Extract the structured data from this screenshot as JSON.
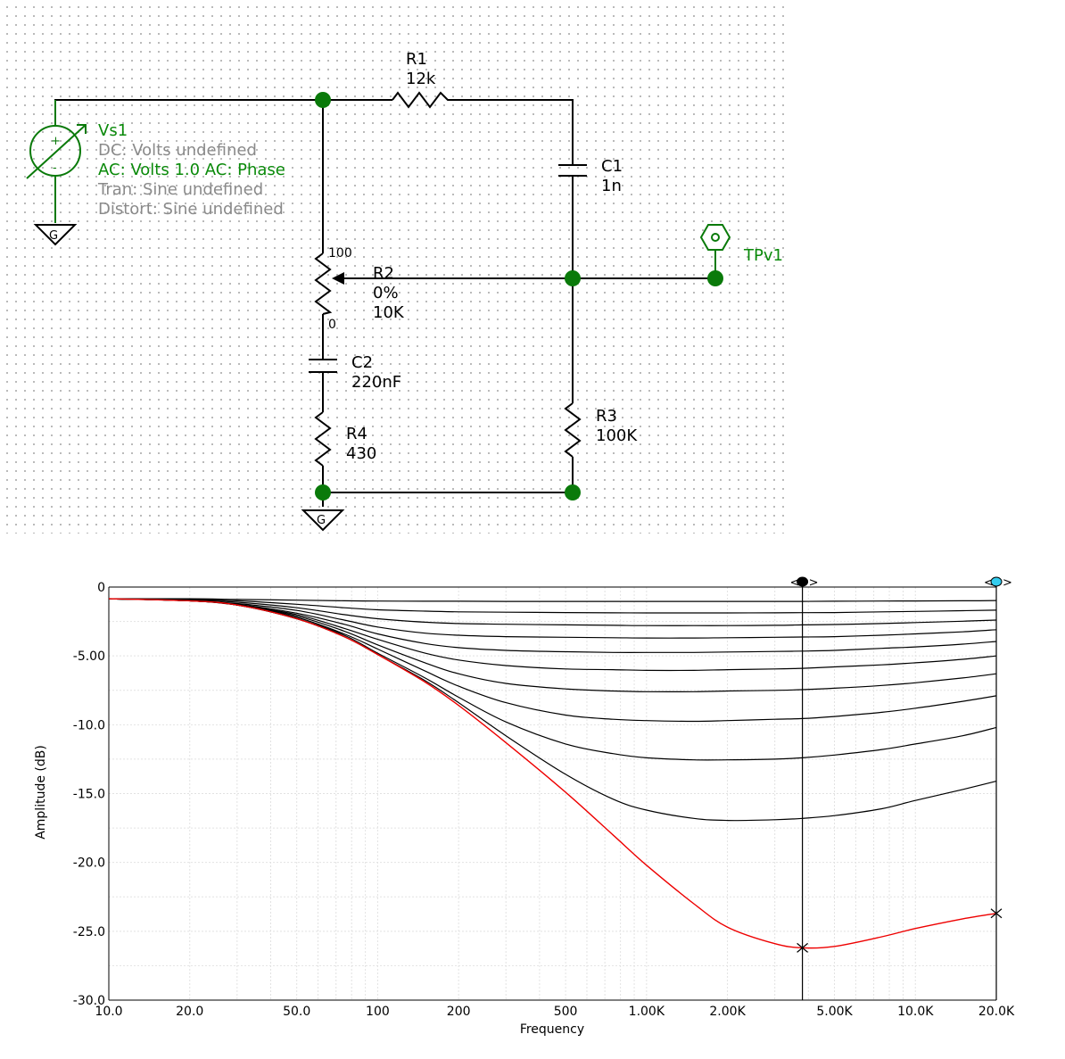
{
  "schematic": {
    "source": {
      "name": "Vs1",
      "dc": "DC: Volts undefined",
      "ac": "AC: Volts  1.0  AC: Phase",
      "tran": "Tran: Sine  undefined",
      "distort": "Distort: Sine  undefined"
    },
    "ground_label": "G",
    "components": {
      "r1": {
        "name": "R1",
        "value": "12k"
      },
      "c1": {
        "name": "C1",
        "value": "1n"
      },
      "r2": {
        "name": "R2",
        "percent": "0%",
        "value": "10K",
        "top_label": "100",
        "bottom_label": "0"
      },
      "c2": {
        "name": "C2",
        "value": "220nF"
      },
      "r4": {
        "name": "R4",
        "value": "430"
      },
      "r3": {
        "name": "R3",
        "value": "100K"
      }
    },
    "testpoint": "TPv1",
    "colors": {
      "wire": "#000000",
      "node": "#0a7a0a",
      "label_green": "#0a8a0a",
      "label_gray": "#8a8a8a"
    }
  },
  "cursors": {
    "open": "<",
    "close": ">",
    "cursor1_color": "#000000",
    "cursor2_color": "#33ccee"
  },
  "chart_data": {
    "type": "line",
    "xlabel": "Frequency",
    "ylabel": "Amplitude (dB)",
    "xscale": "log",
    "xlim": [
      10,
      20000
    ],
    "ylim": [
      -30,
      0
    ],
    "y_ticks": [
      "0",
      "-5.00",
      "-10.0",
      "-15.0",
      "-20.0",
      "-25.0",
      "-30.0"
    ],
    "y_tick_values": [
      0,
      -5,
      -10,
      -15,
      -20,
      -25,
      -30
    ],
    "x_ticks": [
      "10.0",
      "20.0",
      "50.0",
      "100",
      "200",
      "500",
      "1.00K",
      "2.00K",
      "5.00K",
      "10.0K",
      "20.0K"
    ],
    "x_tick_values": [
      10,
      20,
      50,
      100,
      200,
      500,
      1000,
      2000,
      5000,
      10000,
      20000
    ],
    "grid": true,
    "x": [
      10,
      20,
      30,
      50,
      75,
      100,
      150,
      200,
      300,
      500,
      750,
      1000,
      1500,
      2000,
      3000,
      3800,
      5000,
      7500,
      10000,
      15000,
      20000
    ],
    "highlight_color": "#ee0000",
    "series_color": "#000000",
    "series": [
      {
        "values": [
          -0.85,
          -1.0,
          -1.3,
          -2.3,
          -3.6,
          -4.9,
          -6.9,
          -8.6,
          -11.3,
          -14.9,
          -18.0,
          -20.2,
          -23.0,
          -24.7,
          -25.9,
          -26.2,
          -26.1,
          -25.4,
          -24.8,
          -24.1,
          -23.7
        ]
      },
      {
        "values": [
          -0.85,
          -1.0,
          -1.3,
          -2.3,
          -3.6,
          -4.9,
          -6.8,
          -8.4,
          -10.8,
          -13.6,
          -15.4,
          -16.2,
          -16.8,
          -16.95,
          -16.9,
          -16.8,
          -16.6,
          -16.1,
          -15.5,
          -14.7,
          -14.1
        ]
      },
      {
        "values": [
          -0.85,
          -1.0,
          -1.3,
          -2.3,
          -3.5,
          -4.8,
          -6.6,
          -8.0,
          -9.8,
          -11.4,
          -12.1,
          -12.4,
          -12.55,
          -12.55,
          -12.5,
          -12.4,
          -12.2,
          -11.8,
          -11.4,
          -10.8,
          -10.2
        ]
      },
      {
        "values": [
          -0.85,
          -1.0,
          -1.3,
          -2.2,
          -3.4,
          -4.5,
          -6.1,
          -7.2,
          -8.4,
          -9.3,
          -9.6,
          -9.7,
          -9.75,
          -9.7,
          -9.6,
          -9.55,
          -9.4,
          -9.1,
          -8.8,
          -8.3,
          -7.9
        ]
      },
      {
        "values": [
          -0.85,
          -1.0,
          -1.3,
          -2.1,
          -3.2,
          -4.2,
          -5.5,
          -6.3,
          -7.0,
          -7.4,
          -7.55,
          -7.6,
          -7.6,
          -7.55,
          -7.5,
          -7.45,
          -7.35,
          -7.15,
          -6.95,
          -6.6,
          -6.3
        ]
      },
      {
        "values": [
          -0.85,
          -1.0,
          -1.3,
          -2.0,
          -3.0,
          -3.8,
          -4.8,
          -5.3,
          -5.7,
          -5.95,
          -6.0,
          -6.05,
          -6.05,
          -6.0,
          -5.95,
          -5.9,
          -5.8,
          -5.65,
          -5.5,
          -5.25,
          -5.0
        ]
      },
      {
        "values": [
          -0.85,
          -1.0,
          -1.25,
          -1.9,
          -2.7,
          -3.4,
          -4.1,
          -4.4,
          -4.6,
          -4.7,
          -4.75,
          -4.75,
          -4.75,
          -4.72,
          -4.68,
          -4.65,
          -4.6,
          -4.45,
          -4.35,
          -4.15,
          -3.95
        ]
      },
      {
        "values": [
          -0.85,
          -1.0,
          -1.2,
          -1.7,
          -2.4,
          -2.9,
          -3.35,
          -3.5,
          -3.6,
          -3.65,
          -3.68,
          -3.7,
          -3.7,
          -3.68,
          -3.65,
          -3.63,
          -3.6,
          -3.5,
          -3.4,
          -3.25,
          -3.1
        ]
      },
      {
        "values": [
          -0.85,
          -0.95,
          -1.1,
          -1.5,
          -2.0,
          -2.3,
          -2.55,
          -2.65,
          -2.7,
          -2.75,
          -2.78,
          -2.8,
          -2.8,
          -2.8,
          -2.78,
          -2.75,
          -2.72,
          -2.65,
          -2.58,
          -2.48,
          -2.4
        ]
      },
      {
        "values": [
          -0.85,
          -0.9,
          -1.0,
          -1.25,
          -1.5,
          -1.65,
          -1.75,
          -1.8,
          -1.83,
          -1.85,
          -1.87,
          -1.88,
          -1.88,
          -1.88,
          -1.87,
          -1.86,
          -1.85,
          -1.8,
          -1.77,
          -1.72,
          -1.68
        ]
      },
      {
        "values": [
          -0.85,
          -0.85,
          -0.9,
          -0.95,
          -1.0,
          -1.02,
          -1.03,
          -1.03,
          -1.04,
          -1.04,
          -1.04,
          -1.04,
          -1.04,
          -1.04,
          -1.04,
          -1.04,
          -1.03,
          -1.02,
          -1.01,
          -1.0,
          -0.98
        ]
      }
    ],
    "markers": [
      {
        "x": 3800,
        "y": -26.2
      },
      {
        "x": 20000,
        "y": -23.7
      }
    ],
    "cursor_x": [
      3800,
      20000
    ]
  }
}
